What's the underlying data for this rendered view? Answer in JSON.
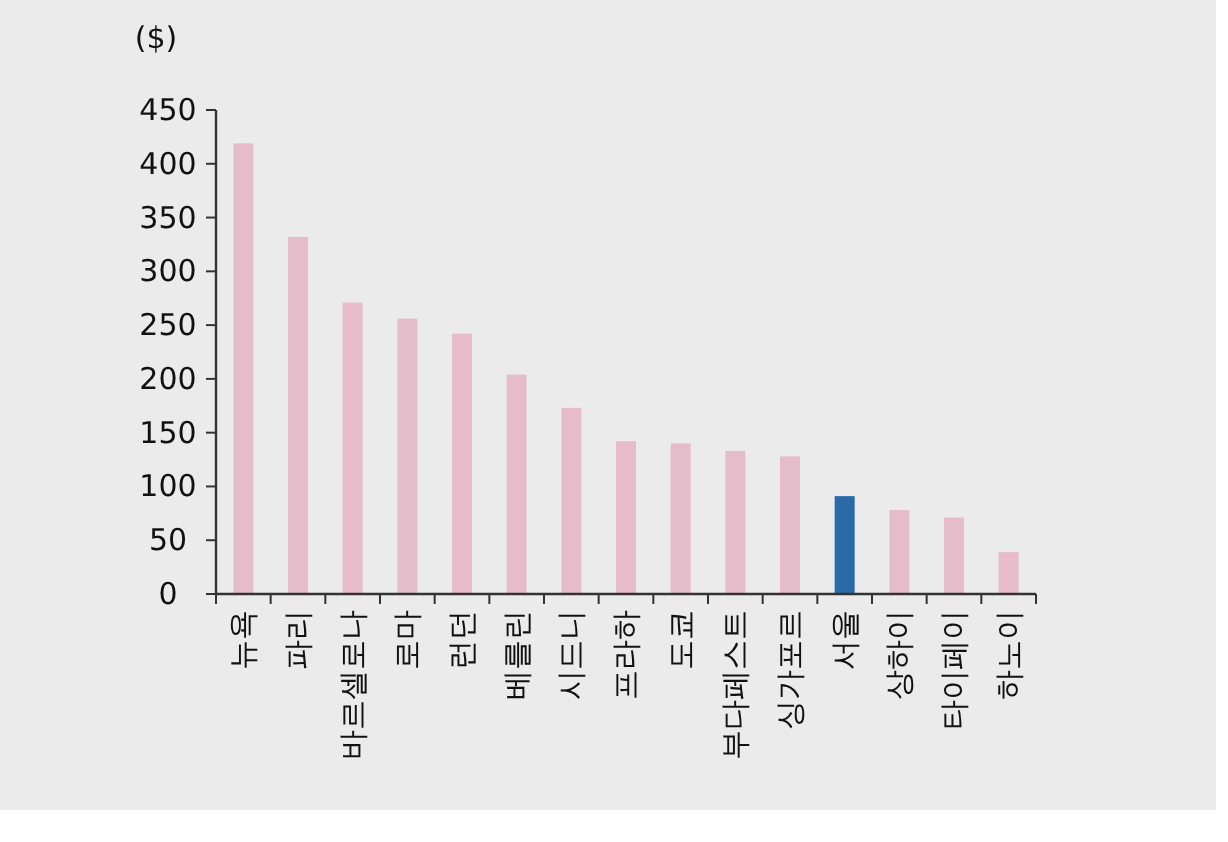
{
  "chart_data": {
    "type": "bar",
    "ylabel": "($)",
    "categories": [
      "뉴욕",
      "파리",
      "바르셀로나",
      "로마",
      "런던",
      "베를린",
      "시드니",
      "프라하",
      "도쿄",
      "부다페스트",
      "싱가포르",
      "서울",
      "상하이",
      "타이페이",
      "하노이"
    ],
    "values": [
      419,
      332,
      271,
      256,
      242,
      204,
      173,
      142,
      140,
      133,
      128,
      91,
      78,
      71,
      39
    ],
    "colors": [
      "#e6bccb",
      "#e6bccb",
      "#e6bccb",
      "#e6bccb",
      "#e6bccb",
      "#e6bccb",
      "#e6bccb",
      "#e6bccb",
      "#e6bccb",
      "#e6bccb",
      "#e6bccb",
      "#2a6aa8",
      "#e6bccb",
      "#e6bccb",
      "#e6bccb"
    ],
    "ylim": [
      0,
      450
    ],
    "yticks": [
      0,
      50,
      100,
      150,
      200,
      250,
      300,
      350,
      400,
      450
    ],
    "grid": false
  }
}
